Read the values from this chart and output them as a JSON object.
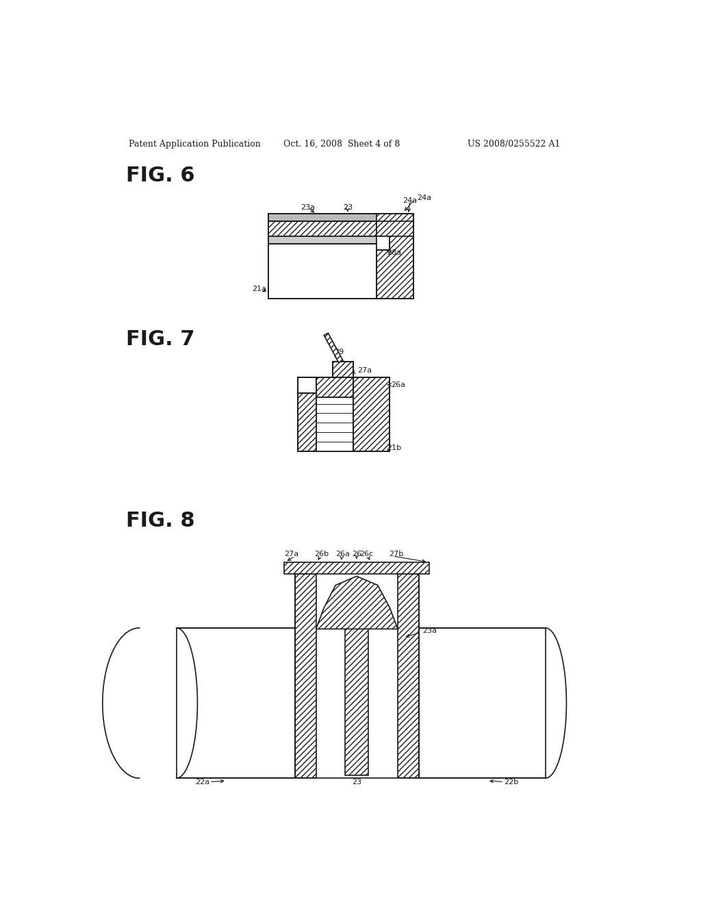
{
  "bg_color": "#ffffff",
  "header_left": "Patent Application Publication",
  "header_center": "Oct. 16, 2008  Sheet 4 of 8",
  "header_right": "US 2008/0255522 A1",
  "fig6_label": "FIG. 6",
  "fig7_label": "FIG. 7",
  "fig8_label": "FIG. 8",
  "lc": "#1a1a1a"
}
